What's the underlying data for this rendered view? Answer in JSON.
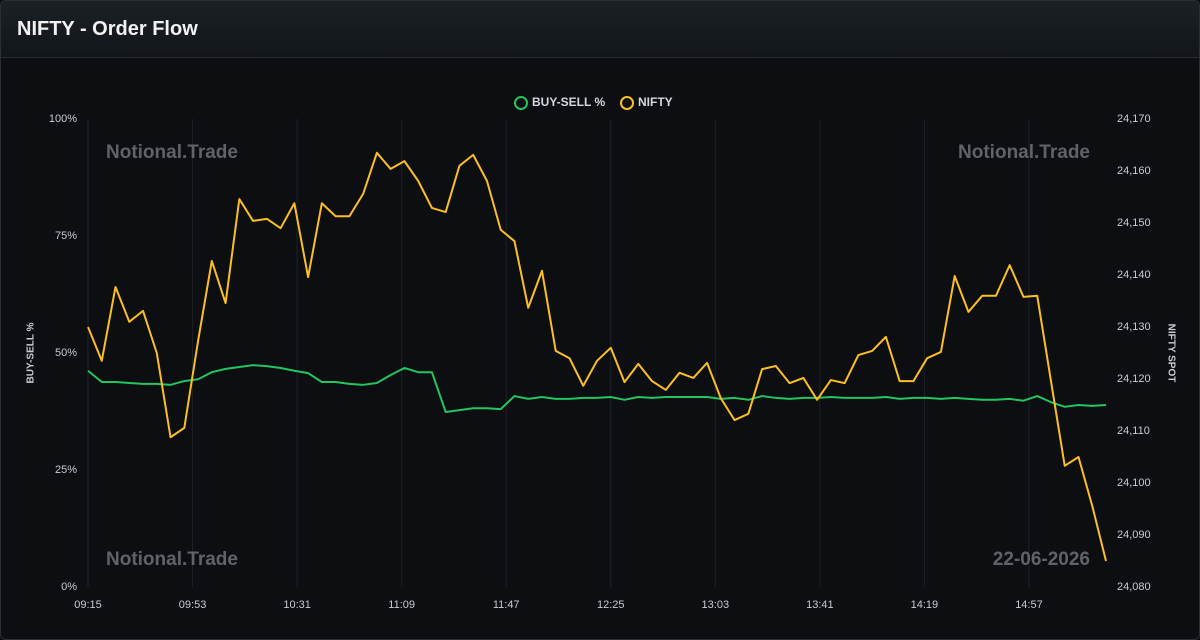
{
  "chart_data": {
    "type": "line",
    "title": "NIFTY - Order Flow",
    "watermarks": [
      "Notional.Trade",
      "Notional.Trade",
      "Notional.Trade",
      "22-06-2026"
    ],
    "ylabel": "BUY-SELL %",
    "y2label": "NIFTY SPOT",
    "legend": "top",
    "grid": "x",
    "xlim": [
      "09:15",
      "15:25"
    ],
    "xticks": [
      "09:15",
      "09:53",
      "10:31",
      "11:09",
      "11:47",
      "12:25",
      "13:03",
      "13:41",
      "14:19",
      "14:57"
    ],
    "ylim": [
      0,
      100
    ],
    "yticks": [
      {
        "value": 0,
        "label": "0%"
      },
      {
        "value": 25,
        "label": "25%"
      },
      {
        "value": 50,
        "label": "50%"
      },
      {
        "value": 75,
        "label": "75%"
      },
      {
        "value": 100,
        "label": "100%"
      }
    ],
    "y2lim": [
      24080,
      24170
    ],
    "y2ticks": [
      {
        "value": 24080,
        "label": "24,080"
      },
      {
        "value": 24090,
        "label": "24,090"
      },
      {
        "value": 24100,
        "label": "24,100"
      },
      {
        "value": 24110,
        "label": "24,110"
      },
      {
        "value": 24120,
        "label": "24,120"
      },
      {
        "value": 24130,
        "label": "24,130"
      },
      {
        "value": 24140,
        "label": "24,140"
      },
      {
        "value": 24150,
        "label": "24,150"
      },
      {
        "value": 24160,
        "label": "24,160"
      },
      {
        "value": 24170,
        "label": "24,170"
      }
    ],
    "x": [
      "09:15",
      "09:20",
      "09:25",
      "09:30",
      "09:35",
      "09:40",
      "09:45",
      "09:50",
      "09:55",
      "10:00",
      "10:05",
      "10:10",
      "10:15",
      "10:20",
      "10:25",
      "10:30",
      "10:35",
      "10:40",
      "10:45",
      "10:50",
      "10:55",
      "11:00",
      "11:05",
      "11:10",
      "11:15",
      "11:20",
      "11:25",
      "11:30",
      "11:35",
      "11:40",
      "11:45",
      "11:50",
      "11:55",
      "12:00",
      "12:05",
      "12:10",
      "12:15",
      "12:20",
      "12:25",
      "12:30",
      "12:35",
      "12:40",
      "12:45",
      "12:50",
      "12:55",
      "13:00",
      "13:05",
      "13:10",
      "13:15",
      "13:20",
      "13:25",
      "13:30",
      "13:35",
      "13:40",
      "13:45",
      "13:50",
      "13:55",
      "14:00",
      "14:05",
      "14:10",
      "14:15",
      "14:20",
      "14:25",
      "14:30",
      "14:35",
      "14:40",
      "14:45",
      "14:50",
      "14:55",
      "15:00",
      "15:05",
      "15:10",
      "15:15",
      "15:20",
      "15:25"
    ],
    "series": [
      {
        "name": "BUY-SELL %",
        "color": "#22c55e",
        "values": [
          46.2,
          43.8,
          43.8,
          43.6,
          43.4,
          43.4,
          43.2,
          44.0,
          44.4,
          45.9,
          46.6,
          47.0,
          47.4,
          47.2,
          46.8,
          46.2,
          45.7,
          43.8,
          43.8,
          43.4,
          43.2,
          43.6,
          45.3,
          46.8,
          45.9,
          45.9,
          37.4,
          37.8,
          38.2,
          38.2,
          38.0,
          40.8,
          40.2,
          40.6,
          40.2,
          40.2,
          40.4,
          40.4,
          40.6,
          40.0,
          40.6,
          40.4,
          40.6,
          40.6,
          40.6,
          40.6,
          40.2,
          40.4,
          40.0,
          40.8,
          40.4,
          40.2,
          40.4,
          40.4,
          40.6,
          40.4,
          40.4,
          40.4,
          40.6,
          40.2,
          40.4,
          40.4,
          40.2,
          40.4,
          40.2,
          40.0,
          40.0,
          40.2,
          39.8,
          40.8,
          39.5,
          38.5,
          38.9,
          38.7,
          38.9
        ]
      },
      {
        "name": "NIFTY",
        "color": "#fbbf24",
        "axis": "y2",
        "values": [
          24130.0,
          24123.5,
          24137.7,
          24131.0,
          24133.1,
          24125.0,
          24108.8,
          24110.6,
          24127.3,
          24142.7,
          24134.6,
          24154.6,
          24150.4,
          24150.8,
          24149.0,
          24153.8,
          24139.6,
          24153.8,
          24151.3,
          24151.3,
          24155.6,
          24163.5,
          24160.4,
          24161.9,
          24158.1,
          24152.9,
          24152.1,
          24161.0,
          24163.1,
          24158.1,
          24148.7,
          24146.5,
          24133.7,
          24140.8,
          24125.4,
          24124.0,
          24118.7,
          24123.5,
          24126.0,
          24119.4,
          24122.9,
          24119.6,
          24117.9,
          24121.2,
          24120.2,
          24123.1,
          24116.3,
          24112.1,
          24113.3,
          24121.9,
          24122.5,
          24119.2,
          24120.2,
          24116.0,
          24119.8,
          24119.2,
          24124.6,
          24125.4,
          24128.1,
          24119.6,
          24119.6,
          24124.0,
          24125.2,
          24139.8,
          24132.9,
          24136.0,
          24136.0,
          24141.9,
          24135.8,
          24136.0,
          24119.6,
          24103.3,
          24105.0,
          24095.6,
          24085.0
        ]
      }
    ]
  }
}
